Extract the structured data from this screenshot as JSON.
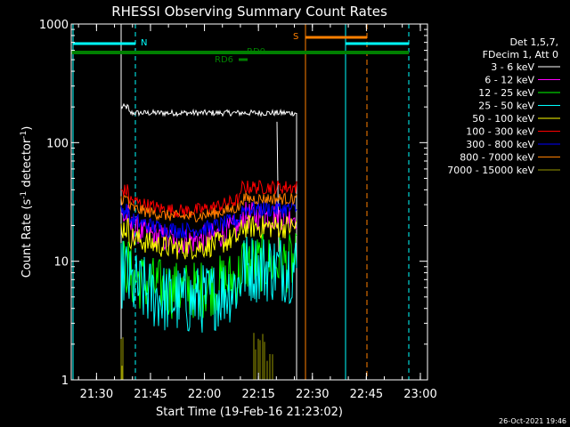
{
  "chart_data": {
    "type": "line",
    "title": "RHESSI Observing Summary Count Rates",
    "xlabel": "Start Time (19-Feb-16 21:23:02)",
    "ylabel_main": "Count Rate (s",
    "ylabel_sup1": "-1",
    "ylabel_mid": " detector",
    "ylabel_sup2": "-1",
    "ylabel_end": ")",
    "yscale": "log",
    "ylim": [
      1,
      1000
    ],
    "xlim_minutes": [
      21.383,
      23.033
    ],
    "xticks": [
      {
        "label": "21:30",
        "minutes": 21.5
      },
      {
        "label": "21:45",
        "minutes": 21.75
      },
      {
        "label": "22:00",
        "minutes": 22.0
      },
      {
        "label": "22:15",
        "minutes": 22.25
      },
      {
        "label": "22:30",
        "minutes": 22.5
      },
      {
        "label": "22:45",
        "minutes": 22.75
      },
      {
        "label": "23:00",
        "minutes": 23.0
      }
    ],
    "yticks": [
      {
        "label": "1",
        "value": 1
      },
      {
        "label": "10",
        "value": 10
      },
      {
        "label": "100",
        "value": 100
      },
      {
        "label": "1000",
        "value": 1000
      }
    ],
    "legend_header": [
      "Det 1,5,7,",
      "FDecim 1, Att 0"
    ],
    "legend_placement": "right",
    "series": [
      {
        "name": "3 - 6 keV",
        "color": "#ffffff",
        "level": 178
      },
      {
        "name": "6 - 12 keV",
        "color": "#ff00ff",
        "level": 21
      },
      {
        "name": "12 - 25 keV",
        "color": "#00ff00",
        "level": 8
      },
      {
        "name": "25 - 50 keV",
        "color": "#00ffff",
        "level": 7
      },
      {
        "name": "50 - 100 keV",
        "color": "#ffff00",
        "level": 17
      },
      {
        "name": "100 - 300 keV",
        "color": "#ff0000",
        "level": 35
      },
      {
        "name": "300 - 800 keV",
        "color": "#0000ff",
        "level": 24
      },
      {
        "name": "800 - 7000 keV",
        "color": "#ff8000",
        "level": 30
      },
      {
        "name": "7000 - 15000 keV",
        "color": "#999900",
        "level": 1.4
      }
    ],
    "annotations": [
      {
        "label": "N",
        "color": "#00ffff"
      },
      {
        "label": "S",
        "color": "#ff8000"
      },
      {
        "label": "RD0",
        "color": "#008000"
      },
      {
        "label": "RD6",
        "color": "#008000"
      }
    ],
    "footer": "26-Oct-2021 19:46"
  }
}
